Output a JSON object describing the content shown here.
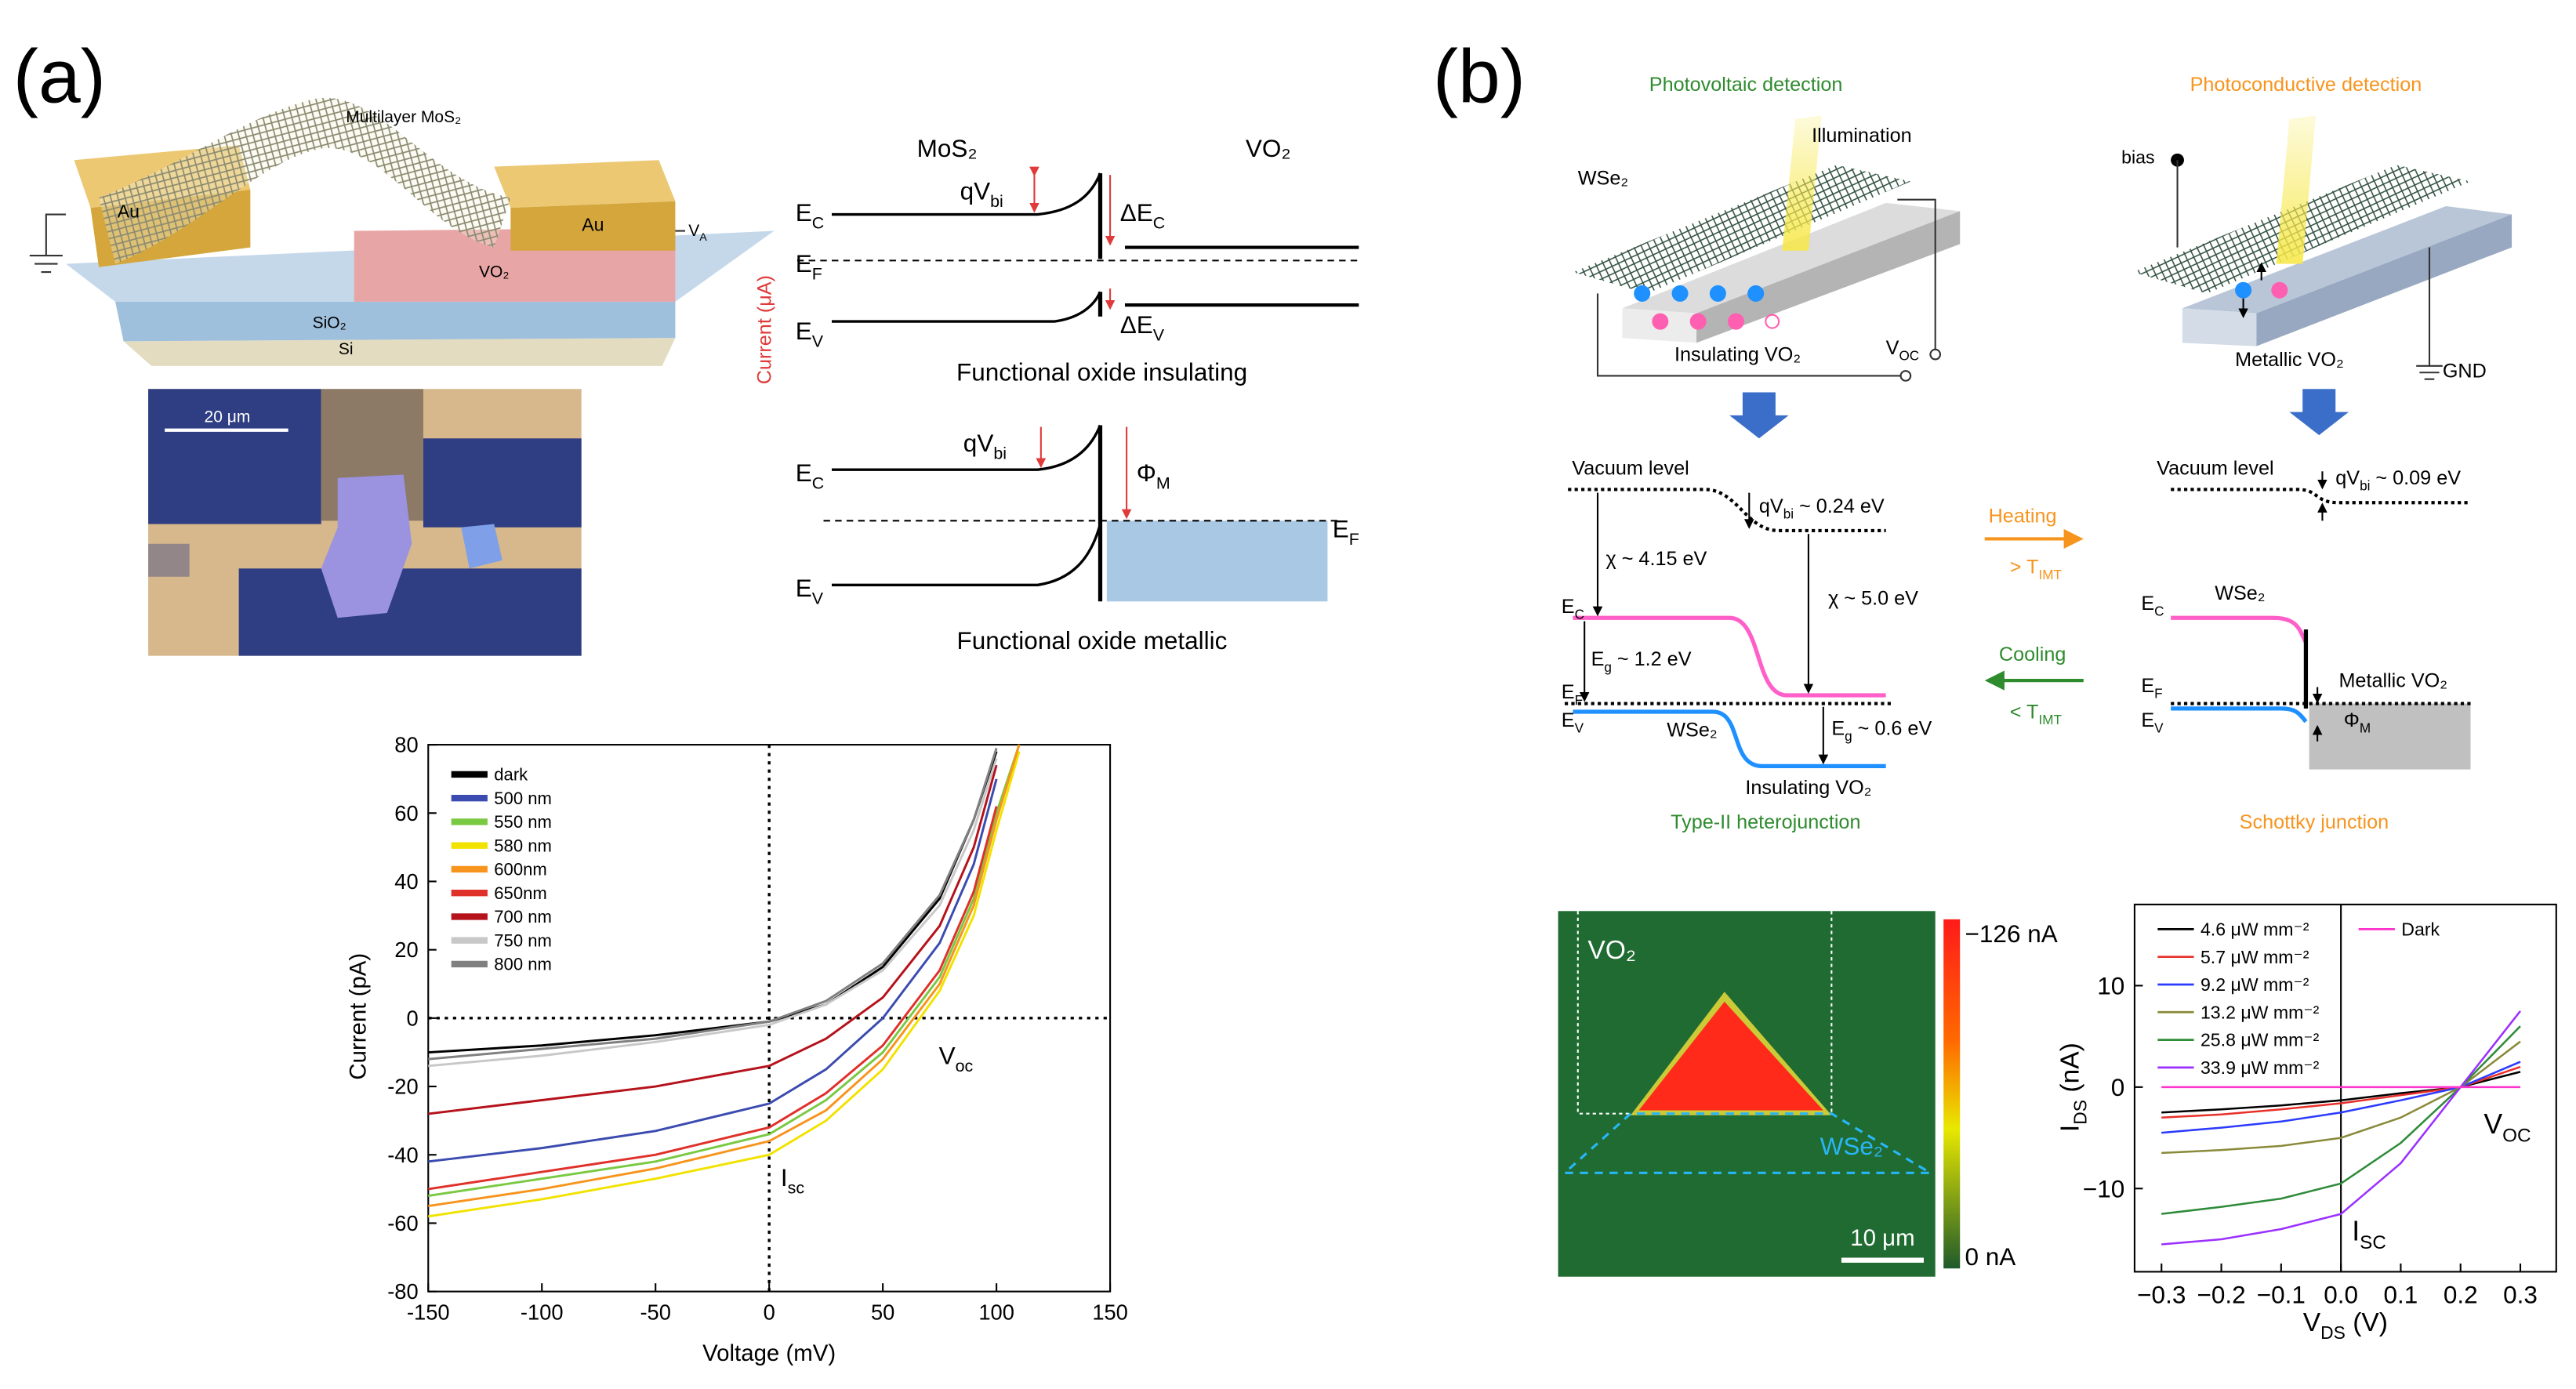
{
  "panel_labels": [
    "(a)",
    "(b)"
  ],
  "labels": {
    "a_mos2": "Multilayer MoS₂",
    "a_au1": "Au",
    "a_au2": "Au",
    "a_va": {
      "text": "V",
      "sub": "A"
    },
    "a_vo2": "VO₂",
    "a_sio2": "SiO₂",
    "a_si": "Si",
    "a_scale": "20 μm",
    "a_bd_mos2": "MoS₂",
    "a_bd_vo2": "VO₂",
    "a_ec1": {
      "text": "E",
      "sub": "C"
    },
    "a_qvbi1": {
      "text": "qV",
      "sub": "bi"
    },
    "a_dec": {
      "text": "ΔE",
      "sub": "C"
    },
    "a_ef1": {
      "text": "E",
      "sub": "F"
    },
    "a_ev1": {
      "text": "E",
      "sub": "V"
    },
    "a_dev": {
      "text": "ΔE",
      "sub": "V"
    },
    "a_ins": "Functional oxide insulating",
    "a_current": "Current (μA)",
    "a_qvbi2": {
      "text": "qV",
      "sub": "bi"
    },
    "a_ec2": {
      "text": "E",
      "sub": "C"
    },
    "a_phim": {
      "text": "Φ",
      "sub": "M"
    },
    "a_ef2": {
      "text": "E",
      "sub": "F"
    },
    "a_ev2": {
      "text": "E",
      "sub": "V"
    },
    "a_met": "Functional oxide metallic",
    "b_pv": "Photovoltaic detection",
    "b_pc": "Photoconductive detection",
    "b_illum": "Illumination",
    "b_wse2_1": "WSe₂",
    "b_insvo2_1": "Insulating VO₂",
    "b_voc": {
      "text": "V",
      "sub": "OC"
    },
    "b_bias": "bias",
    "b_metvo2_1": "Metallic VO₂",
    "b_gnd": "GND",
    "b_vac1": "Vacuum level",
    "b_qvbi1": {
      "text": "qV",
      "sub": "bi",
      "after": " ~ 0.24 eV"
    },
    "b_chi1": "χ ~ 4.15 eV",
    "b_chi2": "χ ~ 5.0 eV",
    "b_ec1": {
      "text": "E",
      "sub": "C"
    },
    "b_eg1": {
      "text": "E",
      "sub": "g",
      "after": " ~ 1.2 eV"
    },
    "b_ef1": {
      "text": "E",
      "sub": "F"
    },
    "b_ev1": {
      "text": "E",
      "sub": "V"
    },
    "b_wse2_2": "WSe₂",
    "b_eg2": {
      "text": "E",
      "sub": "g",
      "after": " ~ 0.6 eV"
    },
    "b_insvo2_2": "Insulating VO₂",
    "b_type2": "Type-II heterojunction",
    "b_heat": "Heating",
    "b_heat_t": {
      "text": "> T",
      "sub": "IMT"
    },
    "b_cool": "Cooling",
    "b_cool_t": {
      "text": "< T",
      "sub": "IMT"
    },
    "b_vac2": "Vacuum level",
    "b_qvbi2": {
      "text": "qV",
      "sub": "bi",
      "after": " ~ 0.09 eV"
    },
    "b_wse2_3": "WSe₂",
    "b_ec2": {
      "text": "E",
      "sub": "C"
    },
    "b_ef2": {
      "text": "E",
      "sub": "F"
    },
    "b_metvo2_2": "Metallic VO₂",
    "b_ev2": {
      "text": "E",
      "sub": "V"
    },
    "b_phim": {
      "text": "Φ",
      "sub": "M"
    },
    "b_schottky": "Schottky junction",
    "b_map_vo2": "VO₂",
    "b_map_wse2": "WSe₂",
    "b_map_scale": "10 μm",
    "b_cbar_max": "−126 nA",
    "b_cbar_min": "0 nA"
  },
  "chart_data": [
    {
      "type": "line",
      "x_label": "Voltage (mV)",
      "y_label": "Current (pA)",
      "x": [
        -150,
        -100,
        -50,
        0,
        25,
        50,
        75,
        90,
        100,
        110
      ],
      "xlim": [
        -150,
        150
      ],
      "ylim": [
        -80,
        80
      ],
      "xticks": [
        -150,
        -100,
        -50,
        0,
        50,
        100,
        150
      ],
      "yticks": [
        -80,
        -60,
        -40,
        -20,
        0,
        20,
        40,
        60,
        80
      ],
      "series": [
        {
          "name": "dark",
          "color": "#000000",
          "values": [
            -10,
            -8,
            -5,
            -1,
            4,
            15,
            35,
            58,
            78,
            null
          ]
        },
        {
          "name": "500 nm",
          "color": "#3b4bb0",
          "values": [
            -42,
            -38,
            -33,
            -25,
            -15,
            0,
            22,
            45,
            70,
            null
          ]
        },
        {
          "name": "550 nm",
          "color": "#7ac943",
          "values": [
            -52,
            -47,
            -42,
            -34,
            -24,
            -10,
            12,
            35,
            60,
            80
          ]
        },
        {
          "name": "580 nm",
          "color": "#f2e200",
          "values": [
            -58,
            -53,
            -47,
            -40,
            -30,
            -15,
            8,
            30,
            55,
            78
          ]
        },
        {
          "name": "600nm",
          "color": "#f7941d",
          "values": [
            -55,
            -50,
            -44,
            -36,
            -27,
            -12,
            10,
            33,
            58,
            80
          ]
        },
        {
          "name": "650nm",
          "color": "#e0302a",
          "values": [
            -50,
            -45,
            -40,
            -32,
            -22,
            -8,
            14,
            37,
            62,
            null
          ]
        },
        {
          "name": "700 nm",
          "color": "#b5121b",
          "values": [
            -28,
            -24,
            -20,
            -14,
            -6,
            6,
            27,
            50,
            74,
            null
          ]
        },
        {
          "name": "750 nm",
          "color": "#c8c8c8",
          "values": [
            -14,
            -11,
            -7,
            -2,
            4,
            14,
            33,
            55,
            76,
            null
          ]
        },
        {
          "name": "800 nm",
          "color": "#808080",
          "values": [
            -12,
            -9,
            -6,
            -1,
            5,
            16,
            36,
            58,
            79,
            null
          ]
        }
      ],
      "annotations": [
        {
          "text": "V",
          "sub": "oc"
        },
        {
          "text": "I",
          "sub": "sc"
        }
      ]
    },
    {
      "type": "line",
      "x_label": {
        "text": "V",
        "sub": "DS",
        "after": " (V)"
      },
      "y_label": {
        "text": "I",
        "sub": "DS",
        "after": " (nA)"
      },
      "x": [
        -0.3,
        -0.2,
        -0.1,
        0,
        0.1,
        0.2,
        0.3
      ],
      "xlim": [
        -0.345,
        0.36
      ],
      "ylim": [
        -18.2,
        18
      ],
      "xticks": [
        {
          "value": -0.3,
          "label": "−0.3"
        },
        {
          "value": -0.2,
          "label": "−0.2"
        },
        {
          "value": -0.1,
          "label": "−0.1"
        },
        {
          "value": 0,
          "label": "0.0"
        },
        0.1,
        0.2,
        0.3
      ],
      "yticks": [
        {
          "value": -10,
          "label": "−10"
        },
        0,
        10
      ],
      "series": [
        {
          "name": "4.6 μW mm⁻²",
          "color": "#000000",
          "values": [
            -2.5,
            -2.2,
            -1.8,
            -1.3,
            -0.6,
            0,
            1.5
          ]
        },
        {
          "name": "5.7 μW mm⁻²",
          "color": "#e8302a",
          "values": [
            -3,
            -2.7,
            -2.2,
            -1.6,
            -0.8,
            0,
            2
          ]
        },
        {
          "name": "9.2 μW mm⁻²",
          "color": "#2b3bff",
          "values": [
            -4.5,
            -4,
            -3.4,
            -2.5,
            -1.3,
            0,
            2.5
          ]
        },
        {
          "name": "13.2 μW mm⁻²",
          "color": "#8a8a3a",
          "values": [
            -6.5,
            -6.2,
            -5.8,
            -5,
            -3,
            0,
            4.5
          ]
        },
        {
          "name": "25.8 μW mm⁻²",
          "color": "#2e8b3a",
          "values": [
            -12.5,
            -11.8,
            -11,
            -9.5,
            -5.5,
            0,
            6
          ]
        },
        {
          "name": "33.9 μW mm⁻²",
          "color": "#9b30ff",
          "values": [
            -15.5,
            -15,
            -14,
            -12.5,
            -7.5,
            0,
            7.5
          ]
        },
        {
          "name": "Dark",
          "color": "#ff33cc",
          "values": [
            0,
            0,
            0,
            0,
            0,
            0,
            0
          ]
        }
      ],
      "annotations": [
        {
          "text": "V",
          "sub": "OC"
        },
        {
          "text": "I",
          "sub": "SC"
        }
      ]
    }
  ]
}
